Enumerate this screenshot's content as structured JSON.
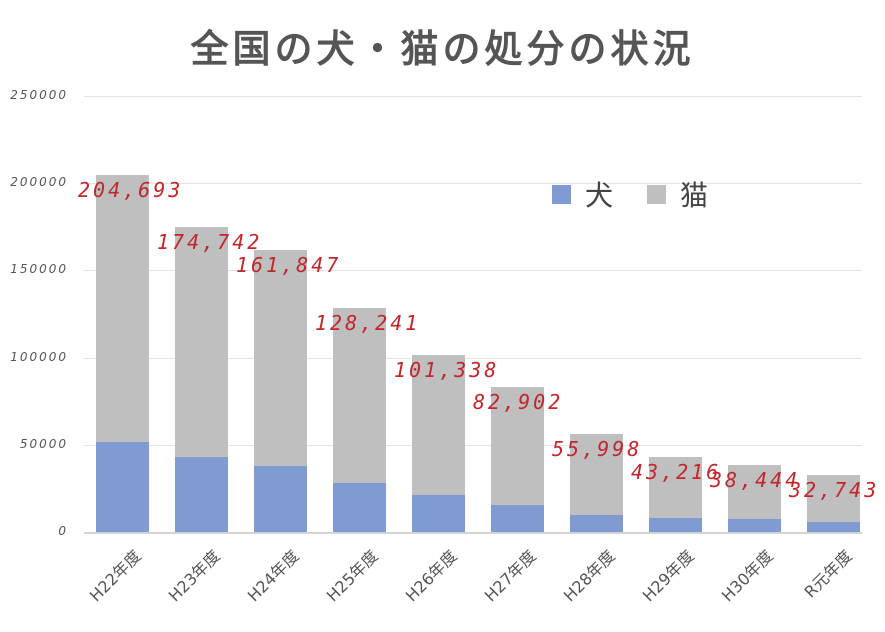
{
  "chart_data": {
    "type": "bar",
    "stacked": true,
    "title": "全国の犬・猫の処分の状況",
    "xlabel": "",
    "ylabel": "",
    "ylim": [
      0,
      250000
    ],
    "yticks": [
      "250000",
      "200000",
      "150000",
      "100000",
      "50000",
      "0"
    ],
    "categories": [
      "H22年度",
      "H23年度",
      "H24年度",
      "H25年度",
      "H26年度",
      "H27年度",
      "H28年度",
      "H29年度",
      "H30年度",
      "R元年度"
    ],
    "series": [
      {
        "name": "犬",
        "color": "#7f9bd1",
        "values": [
          51600,
          43000,
          37900,
          28100,
          21200,
          15500,
          9700,
          8000,
          7500,
          5700
        ]
      },
      {
        "name": "猫",
        "color": "#bfbfbf",
        "values": [
          153093,
          131742,
          123947,
          100141,
          80138,
          67402,
          46298,
          35216,
          30944,
          27043
        ]
      }
    ],
    "totals": [
      204693,
      174742,
      161847,
      128241,
      101338,
      82902,
      55998,
      43216,
      38444,
      32743
    ],
    "total_labels": [
      "204,693",
      "174,742",
      "161,847",
      "128,241",
      "101,338",
      "82,902",
      "55,998",
      "43,216",
      "38,444",
      "32,743"
    ],
    "grid": true,
    "legend_position": "top-right inside"
  },
  "legend": {
    "dog": "犬",
    "cat": "猫"
  }
}
